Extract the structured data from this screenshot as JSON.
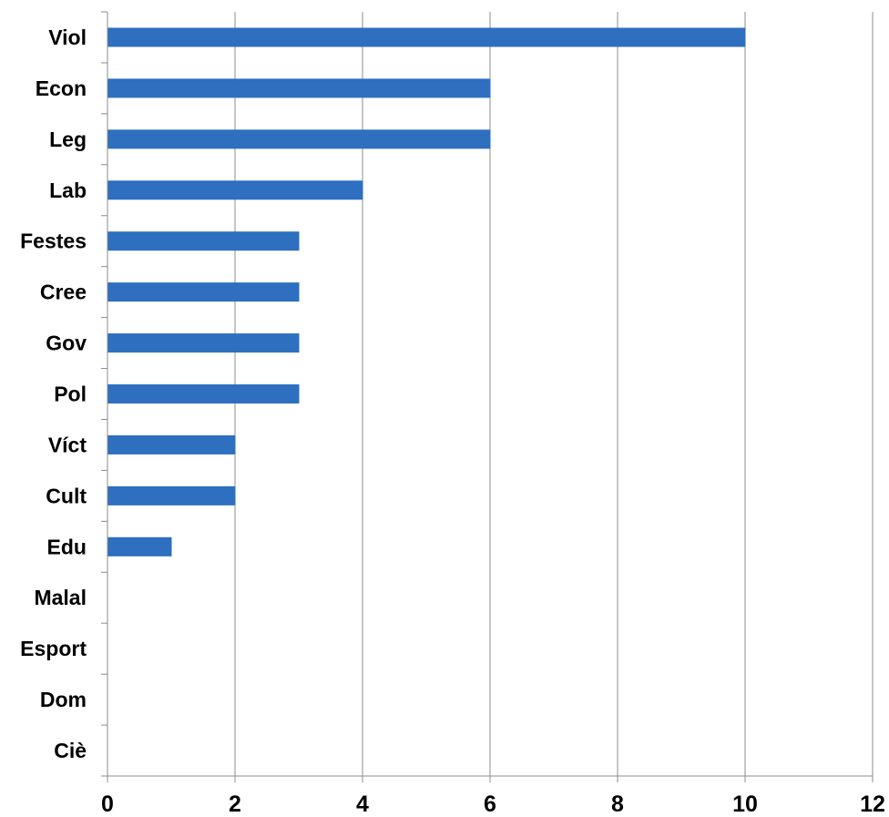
{
  "chart_data": {
    "type": "bar",
    "orientation": "horizontal",
    "categories": [
      "Viol",
      "Econ",
      "Leg",
      "Lab",
      "Festes",
      "Cree",
      "Gov",
      "Pol",
      "Víct",
      "Cult",
      "Edu",
      "Malal",
      "Esport",
      "Dom",
      "Ciè"
    ],
    "values": [
      10,
      6,
      6,
      4,
      3,
      3,
      3,
      3,
      2,
      2,
      1,
      0,
      0,
      0,
      0
    ],
    "title": "",
    "xlabel": "",
    "ylabel": "",
    "xlim": [
      0,
      12
    ],
    "x_ticks": [
      "0",
      "2",
      "4",
      "6",
      "8",
      "10",
      "12"
    ],
    "grid": "vertical",
    "legend": "none",
    "bar_color": "#2E6FBF",
    "grid_color": "#8C8C8C",
    "axis_color": "#8C8C8C"
  }
}
